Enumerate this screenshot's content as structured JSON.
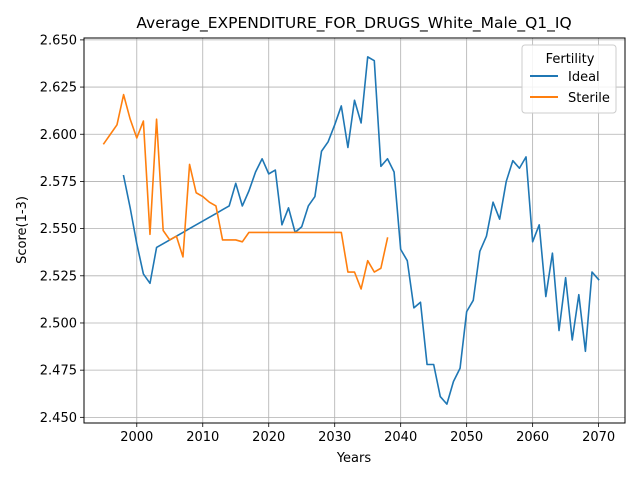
{
  "chart_data": {
    "type": "line",
    "title": "Average_EXPENDITURE_FOR_DRUGS_White_Male_Q1_IQ",
    "xlabel": "Years",
    "ylabel": "Score(1-3)",
    "xlim": [
      1992,
      2074
    ],
    "ylim": [
      2.447,
      2.651
    ],
    "xticks": [
      2000,
      2010,
      2020,
      2030,
      2040,
      2050,
      2060,
      2070
    ],
    "yticks": [
      2.45,
      2.475,
      2.5,
      2.525,
      2.55,
      2.575,
      2.6,
      2.625,
      2.65
    ],
    "x_tick_labels": [
      "2000",
      "2010",
      "2020",
      "2030",
      "2040",
      "2050",
      "2060",
      "2070"
    ],
    "y_tick_labels": [
      "2.450",
      "2.475",
      "2.500",
      "2.525",
      "2.550",
      "2.575",
      "2.600",
      "2.625",
      "2.650"
    ],
    "grid": true,
    "legend": {
      "title": "Fertility",
      "placement": "top-right"
    },
    "series": [
      {
        "name": "Ideal",
        "color": "#1f77b4",
        "x": [
          1998,
          1999,
          2000,
          2001,
          2002,
          2003,
          2004,
          2005,
          2006,
          2007,
          2008,
          2009,
          2010,
          2011,
          2012,
          2013,
          2014,
          2015,
          2016,
          2017,
          2018,
          2019,
          2020,
          2021,
          2022,
          2023,
          2024,
          2025,
          2026,
          2027,
          2028,
          2029,
          2030,
          2031,
          2032,
          2033,
          2034,
          2035,
          2036,
          2037,
          2038,
          2039,
          2040,
          2041,
          2042,
          2043,
          2044,
          2045,
          2046,
          2047,
          2048,
          2049,
          2050,
          2051,
          2052,
          2053,
          2054,
          2055,
          2056,
          2057,
          2058,
          2059,
          2060,
          2061,
          2062,
          2063,
          2064,
          2065,
          2066,
          2067,
          2068,
          2069,
          2070
        ],
        "values": [
          2.578,
          2.561,
          2.542,
          2.526,
          2.521,
          2.54,
          2.542,
          2.544,
          2.546,
          2.548,
          2.55,
          2.552,
          2.554,
          2.556,
          2.558,
          2.56,
          2.562,
          2.574,
          2.562,
          2.57,
          2.58,
          2.587,
          2.579,
          2.581,
          2.552,
          2.561,
          2.548,
          2.551,
          2.562,
          2.567,
          2.591,
          2.596,
          2.605,
          2.615,
          2.593,
          2.618,
          2.606,
          2.641,
          2.639,
          2.583,
          2.587,
          2.58,
          2.539,
          2.533,
          2.508,
          2.511,
          2.478,
          2.478,
          2.461,
          2.457,
          2.469,
          2.476,
          2.506,
          2.512,
          2.538,
          2.546,
          2.564,
          2.555,
          2.575,
          2.586,
          2.582,
          2.588,
          2.543,
          2.552,
          2.514,
          2.537,
          2.496,
          2.524,
          2.491,
          2.515,
          2.485,
          2.527,
          2.523
        ]
      },
      {
        "name": "Sterile",
        "color": "#ff7f0e",
        "x": [
          1995,
          1996,
          1997,
          1998,
          1999,
          2000,
          2001,
          2002,
          2003,
          2004,
          2005,
          2006,
          2007,
          2008,
          2009,
          2010,
          2011,
          2012,
          2013,
          2014,
          2015,
          2016,
          2017,
          2018,
          2019,
          2020,
          2021,
          2022,
          2023,
          2024,
          2025,
          2026,
          2027,
          2028,
          2029,
          2030,
          2031,
          2032,
          2033,
          2034,
          2035,
          2036,
          2037,
          2038
        ],
        "values": [
          2.595,
          2.6,
          2.605,
          2.621,
          2.608,
          2.598,
          2.607,
          2.547,
          2.608,
          2.549,
          2.544,
          2.546,
          2.535,
          2.584,
          2.569,
          2.567,
          2.564,
          2.562,
          2.544,
          2.544,
          2.544,
          2.543,
          2.548,
          2.548,
          2.548,
          2.548,
          2.548,
          2.548,
          2.548,
          2.548,
          2.548,
          2.548,
          2.548,
          2.548,
          2.548,
          2.548,
          2.548,
          2.527,
          2.527,
          2.518,
          2.533,
          2.527,
          2.529,
          2.545
        ]
      }
    ]
  }
}
